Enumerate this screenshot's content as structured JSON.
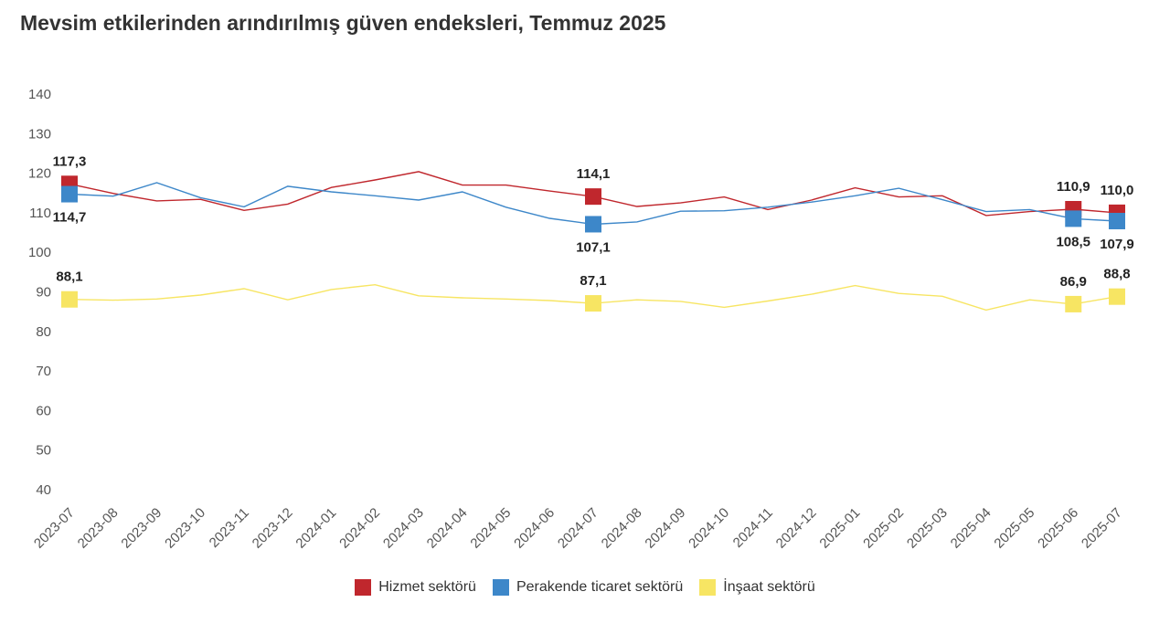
{
  "chart_data": {
    "type": "line",
    "title": "Mevsim etkilerinden arındırılmış güven endeksleri, Temmuz 2025",
    "xlabel": "",
    "ylabel": "",
    "ylim": [
      40,
      140
    ],
    "yticks": [
      40,
      50,
      60,
      70,
      80,
      90,
      100,
      110,
      120,
      130,
      140
    ],
    "grid": false,
    "legend_position": "bottom-center",
    "categories": [
      "2023-07",
      "2023-08",
      "2023-09",
      "2023-10",
      "2023-11",
      "2023-12",
      "2024-01",
      "2024-02",
      "2024-03",
      "2024-04",
      "2024-05",
      "2024-06",
      "2024-07",
      "2024-08",
      "2024-09",
      "2024-10",
      "2024-11",
      "2024-12",
      "2025-01",
      "2025-02",
      "2025-03",
      "2025-04",
      "2025-05",
      "2025-06",
      "2025-07"
    ],
    "series": [
      {
        "name": "Hizmet sektörü",
        "color": "#c0272d",
        "values": [
          117.3,
          114.9,
          113.0,
          113.4,
          110.6,
          112.2,
          116.4,
          118.3,
          120.4,
          117.0,
          117.0,
          115.5,
          114.1,
          111.6,
          112.5,
          114.0,
          110.8,
          113.2,
          116.3,
          114.0,
          114.3,
          109.3,
          110.3,
          110.9,
          110.0
        ],
        "labels": [
          {
            "index": 0,
            "text": "117,3",
            "pos": "above"
          },
          {
            "index": 12,
            "text": "114,1",
            "pos": "above"
          },
          {
            "index": 23,
            "text": "110,9",
            "pos": "above"
          },
          {
            "index": 24,
            "text": "110,0",
            "pos": "above"
          }
        ]
      },
      {
        "name": "Perakende ticaret sektörü",
        "color": "#3d87c9",
        "values": [
          114.7,
          114.2,
          117.6,
          113.8,
          111.5,
          116.7,
          115.3,
          114.3,
          113.2,
          115.3,
          111.4,
          108.6,
          107.1,
          107.7,
          110.4,
          110.5,
          111.4,
          112.7,
          114.3,
          116.2,
          113.3,
          110.3,
          110.8,
          108.5,
          107.9
        ],
        "labels": [
          {
            "index": 0,
            "text": "114,7",
            "pos": "below"
          },
          {
            "index": 12,
            "text": "107,1",
            "pos": "below"
          },
          {
            "index": 23,
            "text": "108,5",
            "pos": "below"
          },
          {
            "index": 24,
            "text": "107,9",
            "pos": "below"
          }
        ]
      },
      {
        "name": "İnşaat sektörü",
        "color": "#f7e563",
        "values": [
          88.1,
          87.9,
          88.2,
          89.2,
          90.8,
          88.0,
          90.6,
          91.8,
          89.0,
          88.5,
          88.2,
          87.8,
          87.1,
          88.0,
          87.6,
          86.1,
          87.7,
          89.4,
          91.6,
          89.6,
          88.9,
          85.4,
          88.0,
          86.9,
          88.8
        ],
        "labels": [
          {
            "index": 0,
            "text": "88,1",
            "pos": "above"
          },
          {
            "index": 12,
            "text": "87,1",
            "pos": "above"
          },
          {
            "index": 23,
            "text": "86,9",
            "pos": "above"
          },
          {
            "index": 24,
            "text": "88,8",
            "pos": "above"
          }
        ]
      }
    ]
  }
}
